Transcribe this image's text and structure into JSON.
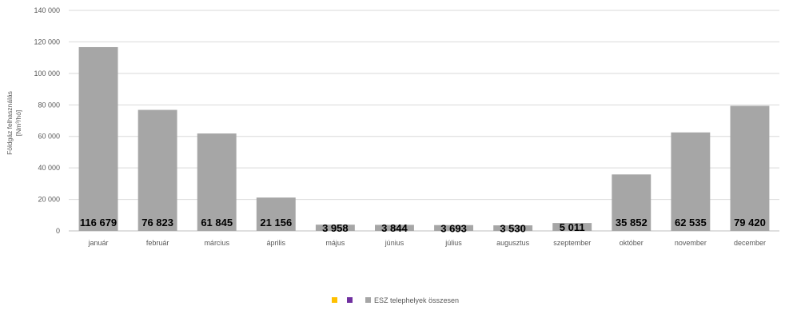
{
  "chart_data": {
    "type": "bar",
    "categories": [
      "január",
      "február",
      "március",
      "április",
      "május",
      "június",
      "július",
      "augusztus",
      "szeptember",
      "október",
      "november",
      "december"
    ],
    "series": [
      {
        "name": "ESZ telephelyek összesen",
        "values": [
          116679,
          76823,
          61845,
          21156,
          3958,
          3844,
          3693,
          3530,
          5011,
          35852,
          62535,
          79420
        ],
        "color": "#a6a6a6"
      }
    ],
    "data_labels": [
      "116 679",
      "76 823",
      "61 845",
      "21 156",
      "3 958",
      "3 844",
      "3 693",
      "3 530",
      "5 011",
      "35 852",
      "62 535",
      "79 420"
    ],
    "ylabel_line1": "Földgáz felhasználás",
    "ylabel_line2": "[Nm³/hó]",
    "ylim": [
      0,
      140000
    ],
    "yticks": [
      0,
      20000,
      40000,
      60000,
      80000,
      100000,
      120000,
      140000
    ],
    "ytick_labels": [
      "0",
      "20 000",
      "40 000",
      "60 000",
      "80 000",
      "100 000",
      "120 000",
      "140 000"
    ],
    "grid": true,
    "legend_position": "bottom-center",
    "legend": [
      {
        "name": "",
        "color": "#ffc000"
      },
      {
        "name": "",
        "color": "#7030a0"
      },
      {
        "name": "ESZ telephelyek összesen",
        "color": "#a6a6a6"
      }
    ]
  }
}
